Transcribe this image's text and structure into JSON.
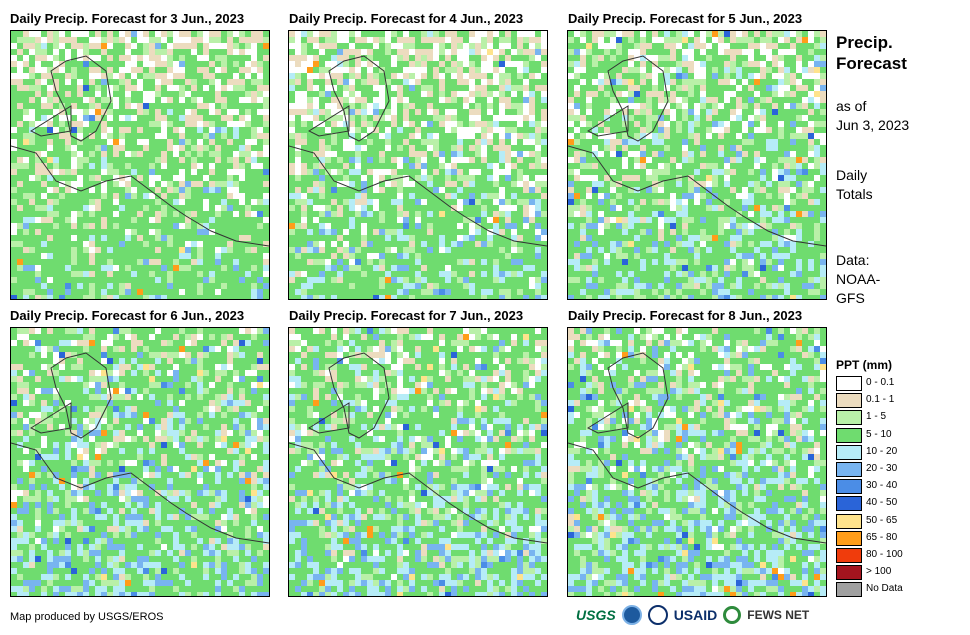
{
  "panels": [
    {
      "title": "Daily Precip. Forecast for 3 Jun., 2023"
    },
    {
      "title": "Daily Precip. Forecast for 4 Jun., 2023"
    },
    {
      "title": "Daily Precip. Forecast for 5 Jun., 2023"
    },
    {
      "title": "Daily Precip. Forecast for 6 Jun., 2023"
    },
    {
      "title": "Daily Precip. Forecast for 7 Jun., 2023"
    },
    {
      "title": "Daily Precip. Forecast for 8 Jun., 2023"
    }
  ],
  "side": {
    "title_line1": "Precip.",
    "title_line2": "Forecast",
    "asof_line1": "as of",
    "asof_line2": "Jun 3, 2023",
    "totals_line1": "Daily",
    "totals_line2": "Totals",
    "data_line1": "Data:",
    "data_line2": "NOAA-",
    "data_line3": "GFS"
  },
  "legend": {
    "title": "PPT (mm)",
    "items": [
      {
        "label": "0 - 0.1",
        "color": "#ffffff"
      },
      {
        "label": "0.1 - 1",
        "color": "#ecdcbf"
      },
      {
        "label": "1 - 5",
        "color": "#b9f0a8"
      },
      {
        "label": "5 - 10",
        "color": "#6fdc6f"
      },
      {
        "label": "10 - 20",
        "color": "#b6ecf7"
      },
      {
        "label": "20 - 30",
        "color": "#78b4f0"
      },
      {
        "label": "30 - 40",
        "color": "#4b8de6"
      },
      {
        "label": "40 - 50",
        "color": "#2a64d8"
      },
      {
        "label": "50 - 65",
        "color": "#fee38c"
      },
      {
        "label": "65 - 80",
        "color": "#ff9d1a"
      },
      {
        "label": "80 - 100",
        "color": "#f03c0c"
      },
      {
        "label": "> 100",
        "color": "#a4141e"
      },
      {
        "label": "No Data",
        "color": "#a0a0a0"
      }
    ]
  },
  "credit": "Map produced by USGS/EROS",
  "logos": {
    "usgs": "USGS",
    "usaid": "USAID",
    "fews": "FEWS NET"
  }
}
